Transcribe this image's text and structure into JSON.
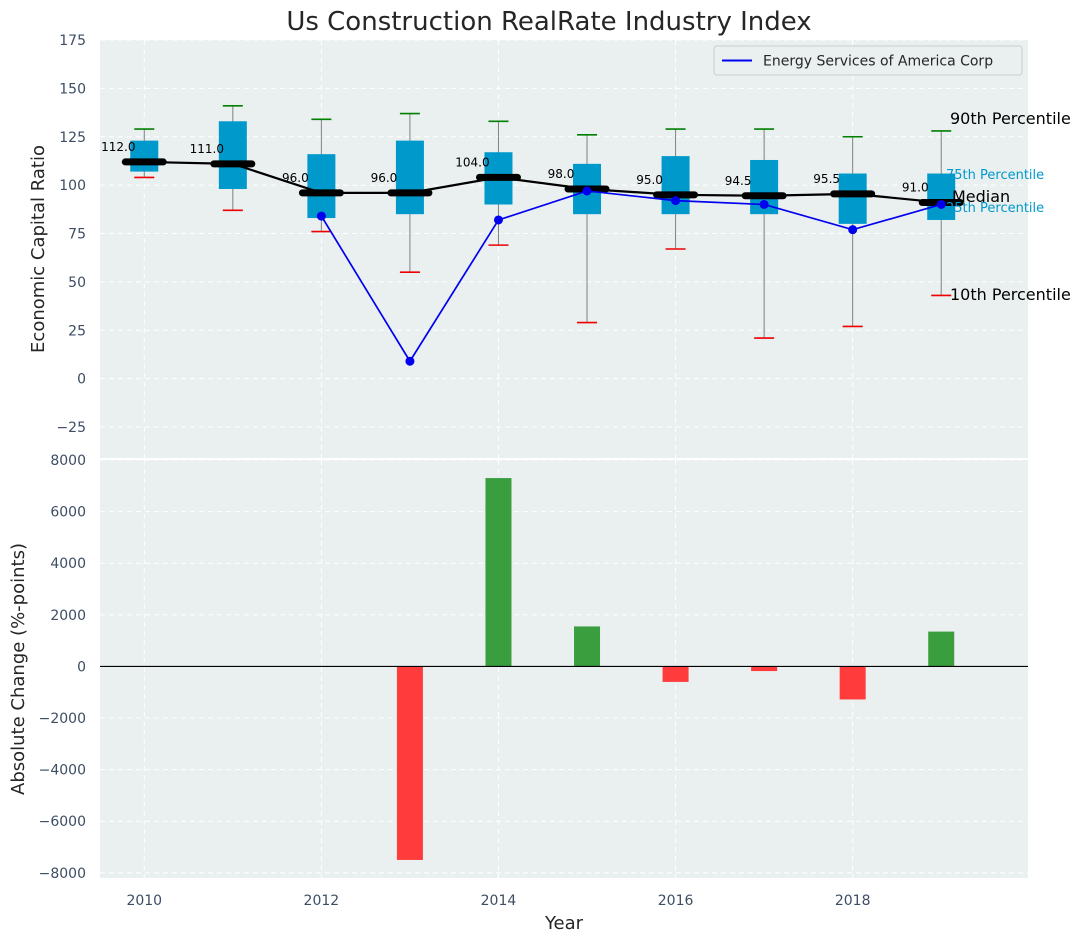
{
  "chart_data": [
    {
      "type": "box",
      "title": "Us Construction RealRate Industry Index",
      "ylabel": "Economic Capital Ratio",
      "xlim": [
        2009.5,
        2019.98
      ],
      "ylim": [
        -41,
        175
      ],
      "yticks": [
        -25,
        0,
        25,
        50,
        75,
        100,
        125,
        150,
        175
      ],
      "grid": true,
      "legend": {
        "entries": [
          "Energy Services of America Corp"
        ],
        "position": "top-right"
      },
      "boxes": [
        {
          "year": 2010,
          "p10": 104,
          "q1": 107,
          "median": 112,
          "q3": 123,
          "p90": 129,
          "median_label": "112.0"
        },
        {
          "year": 2011,
          "p10": 87,
          "q1": 98,
          "median": 111,
          "q3": 133,
          "p90": 141,
          "median_label": "111.0"
        },
        {
          "year": 2012,
          "p10": 76,
          "q1": 83,
          "median": 96,
          "q3": 116,
          "p90": 134,
          "median_label": "96.0"
        },
        {
          "year": 2013,
          "p10": 55,
          "q1": 85,
          "median": 96,
          "q3": 123,
          "p90": 137,
          "median_label": "96.0"
        },
        {
          "year": 2014,
          "p10": 69,
          "q1": 90,
          "median": 104,
          "q3": 117,
          "p90": 133,
          "median_label": "104.0"
        },
        {
          "year": 2015,
          "p10": 29,
          "q1": 85,
          "median": 98,
          "q3": 111,
          "p90": 126,
          "median_label": "98.0"
        },
        {
          "year": 2016,
          "p10": 67,
          "q1": 85,
          "median": 95,
          "q3": 115,
          "p90": 129,
          "median_label": "95.0"
        },
        {
          "year": 2017,
          "p10": 21,
          "q1": 85,
          "median": 94.5,
          "q3": 113,
          "p90": 129,
          "median_label": "94.5"
        },
        {
          "year": 2018,
          "p10": 27,
          "q1": 80,
          "median": 95.5,
          "q3": 106,
          "p90": 125,
          "median_label": "95.5"
        },
        {
          "year": 2019,
          "p10": 43,
          "q1": 82,
          "median": 91,
          "q3": 106,
          "p90": 128,
          "median_label": "91.0"
        }
      ],
      "company_series": {
        "name": "Energy Services of America Corp",
        "color": "#0000ee",
        "points": [
          {
            "x": 2012,
            "y": 84
          },
          {
            "x": 2013,
            "y": 9
          },
          {
            "x": 2014,
            "y": 82
          },
          {
            "x": 2015,
            "y": 97
          },
          {
            "x": 2016,
            "y": 92
          },
          {
            "x": 2017,
            "y": 90
          },
          {
            "x": 2018,
            "y": 77
          },
          {
            "x": 2019,
            "y": 90
          }
        ]
      },
      "annotations": {
        "p90": "90th Percentile",
        "p75": "75th Percentile",
        "median": "Median",
        "p25": "25th Percentile",
        "p10": "10th Percentile"
      },
      "colors": {
        "box": "#0099cc",
        "median_line": "#000000",
        "p90_cap": "#008000",
        "p10_cap": "#ee0000",
        "whisker": "#808080"
      }
    },
    {
      "type": "bar",
      "xlabel": "Year",
      "ylabel": "Absolute Change (%-points)",
      "ylim": [
        -8200,
        8000
      ],
      "yticks": [
        -8000,
        -6000,
        -4000,
        -2000,
        0,
        2000,
        4000,
        6000,
        8000
      ],
      "xticks": [
        2010,
        2012,
        2014,
        2016,
        2018
      ],
      "grid": true,
      "bars": [
        {
          "year": 2013,
          "value": -7500
        },
        {
          "year": 2014,
          "value": 7300
        },
        {
          "year": 2015,
          "value": 1550
        },
        {
          "year": 2016,
          "value": -600
        },
        {
          "year": 2017,
          "value": -180
        },
        {
          "year": 2018,
          "value": -1280
        },
        {
          "year": 2019,
          "value": 1350
        }
      ],
      "colors": {
        "positive": "#3a9e3f",
        "negative": "#ff3b3b"
      }
    }
  ]
}
